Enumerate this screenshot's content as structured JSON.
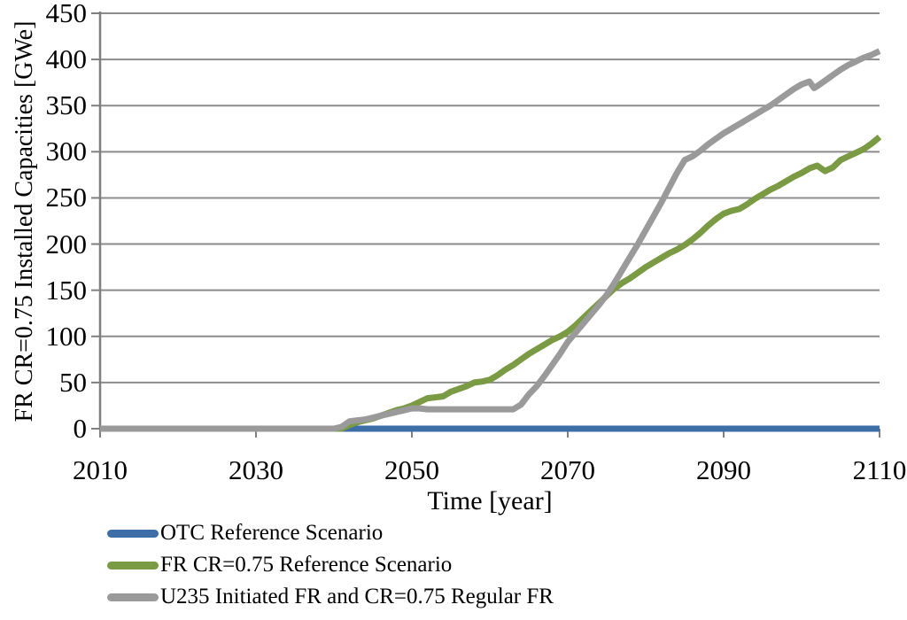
{
  "chart_data": {
    "type": "line",
    "title": "",
    "xlabel": "Time [year]",
    "ylabel": "FR CR=0.75 Installed Capacities [GWe]",
    "xlim": [
      2010,
      2110
    ],
    "ylim": [
      0,
      450
    ],
    "x_ticks": [
      2010,
      2030,
      2050,
      2070,
      2090,
      2110
    ],
    "y_ticks": [
      0,
      50,
      100,
      150,
      200,
      250,
      300,
      350,
      400,
      450
    ],
    "grid": true,
    "legend_position": "bottom-left",
    "colors": {
      "grid": "#8C8C8C",
      "axis": "#7F7F7F",
      "text": "#000000"
    },
    "line_width": 7,
    "series": [
      {
        "name": "OTC Reference Scenario",
        "color": "#3E6EA7",
        "points": [
          [
            2010,
            0
          ],
          [
            2110,
            0
          ]
        ]
      },
      {
        "name": "FR CR=0.75 Reference Scenario",
        "color": "#7A9A43",
        "points": [
          [
            2010,
            0
          ],
          [
            2040,
            0
          ],
          [
            2041,
            0
          ],
          [
            2042,
            4
          ],
          [
            2043,
            7
          ],
          [
            2044,
            9
          ],
          [
            2045,
            11
          ],
          [
            2046,
            14
          ],
          [
            2047,
            17
          ],
          [
            2048,
            20
          ],
          [
            2049,
            22
          ],
          [
            2050,
            25
          ],
          [
            2051,
            29
          ],
          [
            2052,
            33
          ],
          [
            2053,
            34
          ],
          [
            2054,
            35
          ],
          [
            2055,
            40
          ],
          [
            2056,
            43
          ],
          [
            2057,
            46
          ],
          [
            2058,
            50
          ],
          [
            2059,
            51
          ],
          [
            2060,
            53
          ],
          [
            2061,
            58
          ],
          [
            2062,
            64
          ],
          [
            2063,
            69
          ],
          [
            2064,
            75
          ],
          [
            2065,
            81
          ],
          [
            2066,
            86
          ],
          [
            2067,
            91
          ],
          [
            2068,
            96
          ],
          [
            2069,
            100
          ],
          [
            2070,
            105
          ],
          [
            2071,
            112
          ],
          [
            2072,
            120
          ],
          [
            2073,
            128
          ],
          [
            2074,
            136
          ],
          [
            2075,
            144
          ],
          [
            2076,
            152
          ],
          [
            2077,
            158
          ],
          [
            2078,
            163
          ],
          [
            2079,
            169
          ],
          [
            2080,
            175
          ],
          [
            2081,
            180
          ],
          [
            2082,
            185
          ],
          [
            2083,
            190
          ],
          [
            2084,
            194
          ],
          [
            2085,
            199
          ],
          [
            2086,
            205
          ],
          [
            2087,
            212
          ],
          [
            2088,
            220
          ],
          [
            2089,
            227
          ],
          [
            2090,
            233
          ],
          [
            2091,
            236
          ],
          [
            2092,
            238
          ],
          [
            2093,
            243
          ],
          [
            2094,
            249
          ],
          [
            2095,
            254
          ],
          [
            2096,
            259
          ],
          [
            2097,
            263
          ],
          [
            2098,
            268
          ],
          [
            2099,
            273
          ],
          [
            2100,
            277
          ],
          [
            2101,
            282
          ],
          [
            2102,
            285
          ],
          [
            2103,
            279
          ],
          [
            2104,
            283
          ],
          [
            2105,
            291
          ],
          [
            2106,
            295
          ],
          [
            2107,
            299
          ],
          [
            2108,
            303
          ],
          [
            2109,
            309
          ],
          [
            2110,
            316
          ]
        ]
      },
      {
        "name": "U235 Initiated FR and CR=0.75 Regular FR",
        "color": "#9A9A9A",
        "points": [
          [
            2010,
            0
          ],
          [
            2040,
            0
          ],
          [
            2041,
            2
          ],
          [
            2042,
            8
          ],
          [
            2043,
            9
          ],
          [
            2044,
            10
          ],
          [
            2045,
            12
          ],
          [
            2046,
            14
          ],
          [
            2047,
            16
          ],
          [
            2048,
            18
          ],
          [
            2049,
            20
          ],
          [
            2050,
            22
          ],
          [
            2051,
            22
          ],
          [
            2052,
            21
          ],
          [
            2053,
            21
          ],
          [
            2054,
            21
          ],
          [
            2055,
            21
          ],
          [
            2056,
            21
          ],
          [
            2057,
            21
          ],
          [
            2058,
            21
          ],
          [
            2059,
            21
          ],
          [
            2060,
            21
          ],
          [
            2061,
            21
          ],
          [
            2062,
            21
          ],
          [
            2063,
            21
          ],
          [
            2064,
            26
          ],
          [
            2065,
            37
          ],
          [
            2066,
            46
          ],
          [
            2067,
            57
          ],
          [
            2068,
            69
          ],
          [
            2069,
            81
          ],
          [
            2070,
            94
          ],
          [
            2071,
            104
          ],
          [
            2072,
            114
          ],
          [
            2073,
            124
          ],
          [
            2074,
            134
          ],
          [
            2075,
            145
          ],
          [
            2076,
            158
          ],
          [
            2077,
            172
          ],
          [
            2078,
            186
          ],
          [
            2079,
            200
          ],
          [
            2080,
            215
          ],
          [
            2081,
            230
          ],
          [
            2082,
            245
          ],
          [
            2083,
            261
          ],
          [
            2084,
            277
          ],
          [
            2085,
            291
          ],
          [
            2086,
            295
          ],
          [
            2087,
            301
          ],
          [
            2088,
            308
          ],
          [
            2089,
            314
          ],
          [
            2090,
            320
          ],
          [
            2091,
            325
          ],
          [
            2092,
            330
          ],
          [
            2093,
            335
          ],
          [
            2094,
            340
          ],
          [
            2095,
            345
          ],
          [
            2096,
            350
          ],
          [
            2097,
            356
          ],
          [
            2098,
            362
          ],
          [
            2099,
            368
          ],
          [
            2100,
            373
          ],
          [
            2101,
            376
          ],
          [
            2101.6,
            369
          ],
          [
            2102,
            371
          ],
          [
            2103,
            377
          ],
          [
            2104,
            383
          ],
          [
            2105,
            389
          ],
          [
            2106,
            394
          ],
          [
            2107,
            398
          ],
          [
            2108,
            402
          ],
          [
            2109,
            405
          ],
          [
            2110,
            409
          ]
        ]
      }
    ]
  }
}
